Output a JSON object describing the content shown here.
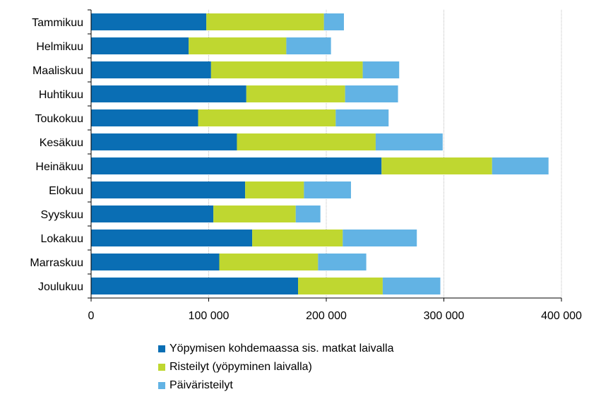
{
  "chart_data": {
    "type": "bar",
    "orientation": "horizontal",
    "stacked": true,
    "categories": [
      "Tammikuu",
      "Helmikuu",
      "Maaliskuu",
      "Huhtikuu",
      "Toukokuu",
      "Kesäkuu",
      "Heinäkuu",
      "Elokuu",
      "Syyskuu",
      "Lokakuu",
      "Marraskuu",
      "Joulukuu"
    ],
    "series": [
      {
        "name": "Yöpymisen kohdemaassa sis. matkat laivalla",
        "color": "#0a6eb4",
        "values": [
          98000,
          83000,
          102000,
          132000,
          91000,
          124000,
          247000,
          131000,
          104000,
          137000,
          109000,
          176000
        ]
      },
      {
        "name": "Risteilyt (yöpyminen laivalla)",
        "color": "#bfd730",
        "values": [
          100000,
          83000,
          129000,
          84000,
          117000,
          118000,
          94000,
          50000,
          70000,
          77000,
          84000,
          72000
        ]
      },
      {
        "name": "Päiväristeilyt",
        "color": "#62b3e4",
        "values": [
          17000,
          38000,
          31000,
          45000,
          45000,
          57000,
          48000,
          40000,
          21000,
          63000,
          41000,
          49000
        ]
      }
    ],
    "xlim": [
      0,
      400000
    ],
    "xticks": [
      0,
      100000,
      200000,
      300000,
      400000
    ],
    "xtick_labels": [
      "0",
      "100 000",
      "200 000",
      "300 000",
      "400 000"
    ],
    "grid": "vertical",
    "legend_position": "bottom"
  }
}
